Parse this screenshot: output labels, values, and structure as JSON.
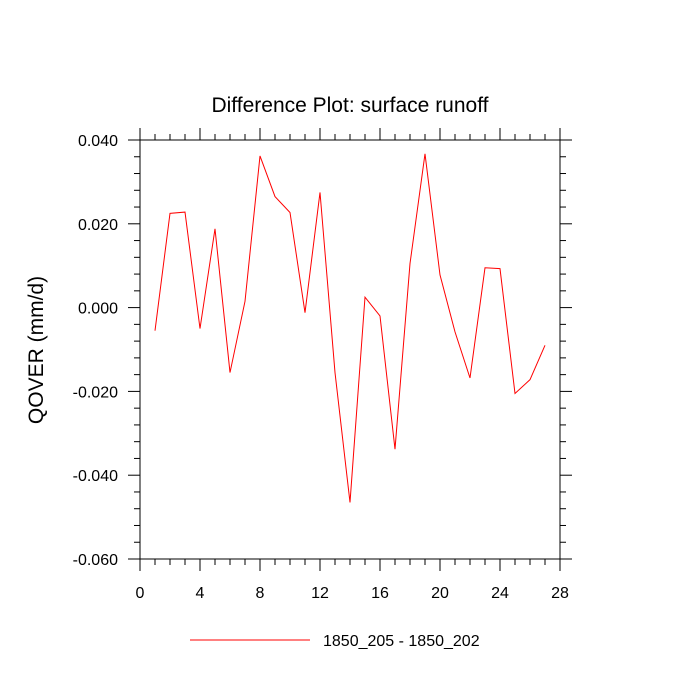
{
  "chart_data": {
    "type": "line",
    "title": "Difference Plot: surface runoff",
    "xlabel": "",
    "ylabel": "QOVER  (mm/d)",
    "xlim": [
      0,
      28
    ],
    "ylim": [
      -0.06,
      0.04
    ],
    "xticks": [
      0,
      4,
      8,
      12,
      16,
      20,
      24,
      28
    ],
    "xtick_labels": [
      "0",
      "4",
      "8",
      "12",
      "16",
      "20",
      "24",
      "28"
    ],
    "yticks": [
      -0.06,
      -0.04,
      -0.02,
      0.0,
      0.02,
      0.04
    ],
    "ytick_labels": [
      "-0.060",
      "-0.040",
      "-0.020",
      "0.000",
      "0.020",
      "0.040"
    ],
    "grid": false,
    "legend_position": "bottom-center",
    "series": [
      {
        "name": "1850_205 - 1850_202",
        "color": "#ff0000",
        "x": [
          1,
          2,
          3,
          4,
          5,
          6,
          7,
          8,
          9,
          10,
          11,
          12,
          13,
          14,
          15,
          16,
          17,
          18,
          19,
          20,
          21,
          22,
          23,
          24,
          25,
          26,
          27
        ],
        "y": [
          -0.0055,
          0.0225,
          0.0228,
          -0.005,
          0.0188,
          -0.0155,
          0.0015,
          0.0362,
          0.0265,
          0.0227,
          -0.0012,
          0.0275,
          -0.0155,
          -0.0465,
          0.0025,
          -0.002,
          -0.0338,
          0.0105,
          0.0367,
          0.0078,
          -0.0058,
          -0.0168,
          0.0095,
          0.0093,
          -0.0205,
          -0.0172,
          -0.009
        ]
      }
    ]
  }
}
